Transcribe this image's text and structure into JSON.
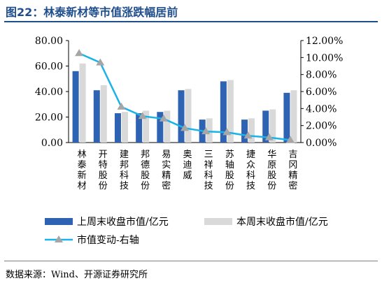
{
  "title": "图22：林泰新材等市值涨跌幅居前",
  "source": "数据来源：Wind、开源证券研究所",
  "colors": {
    "bar_prev": "#2e62b3",
    "bar_curr": "#d9d9d9",
    "line": "#1ab3e8",
    "marker": "#a6a6a6"
  },
  "chart_data": {
    "type": "bar",
    "categories": [
      "林泰新材",
      "开特股份",
      "建邦科技",
      "邦德股份",
      "易实精密",
      "奥迪威",
      "三祥科技",
      "苏轴股份",
      "捷众科技",
      "华原股份",
      "吉冈精密"
    ],
    "series": [
      {
        "name": "上周末收盘市值/亿元",
        "axis": "left",
        "values": [
          56,
          41,
          23,
          23,
          24,
          41,
          18,
          48,
          18,
          25,
          39
        ]
      },
      {
        "name": "本周末收盘市值/亿元",
        "axis": "left",
        "values": [
          62,
          45,
          24,
          25,
          25,
          42,
          19,
          49,
          19,
          26,
          41
        ]
      },
      {
        "name": "市值变动-右轴",
        "axis": "right",
        "type": "line",
        "values": [
          10.5,
          9.4,
          4.2,
          3.1,
          2.8,
          1.7,
          1.3,
          1.2,
          0.8,
          0.6,
          0.3
        ]
      }
    ],
    "yticks_left": [
      "80.00",
      "60.00",
      "40.00",
      "20.00",
      "0.00"
    ],
    "yticks_right": [
      "12.00%",
      "10.00%",
      "8.00%",
      "6.00%",
      "4.00%",
      "2.00%",
      "0.00%"
    ],
    "ylim_left": [
      0,
      80
    ],
    "ylim_right": [
      0,
      12
    ],
    "legend_position": "bottom"
  }
}
